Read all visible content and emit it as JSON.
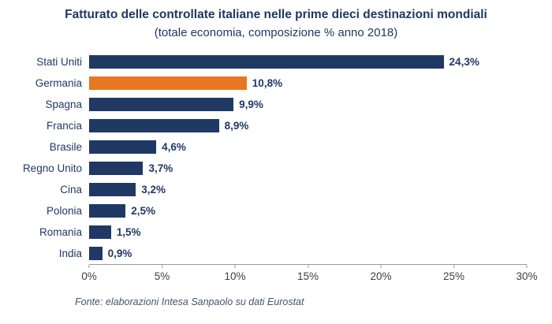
{
  "header": {
    "title": "Fatturato delle controllate italiane nelle prime dieci destinazioni mondiali",
    "subtitle": "(totale economia, composizione % anno 2018)"
  },
  "footer": {
    "source": "Fonte: elaborazioni Intesa Sanpaolo su dati Eurostat"
  },
  "colors": {
    "primary_bar": "#1F3864",
    "highlight_bar": "#E87722",
    "text": "#1F3864",
    "axis": "#9a9a9a"
  },
  "chart_data": {
    "type": "bar",
    "orientation": "horizontal",
    "title": "Fatturato delle controllate italiane nelle prime dieci destinazioni mondiali",
    "subtitle": "(totale economia, composizione % anno 2018)",
    "categories": [
      "Stati Uniti",
      "Germania",
      "Spagna",
      "Francia",
      "Brasile",
      "Regno Unito",
      "Cina",
      "Polonia",
      "Romania",
      "India"
    ],
    "values": [
      24.3,
      10.8,
      9.9,
      8.9,
      4.6,
      3.7,
      3.2,
      2.5,
      1.5,
      0.9
    ],
    "value_labels": [
      "24,3%",
      "10,8%",
      "9,9%",
      "8,9%",
      "4,6%",
      "3,7%",
      "3,2%",
      "2,5%",
      "1,5%",
      "0,9%"
    ],
    "highlight_category": "Germania",
    "xlim": [
      0,
      30
    ],
    "x_ticks": [
      "0%",
      "5%",
      "10%",
      "15%",
      "20%",
      "25%",
      "30%"
    ],
    "xlabel": "",
    "ylabel": "",
    "grid": false,
    "legend": "none",
    "source": "Fonte: elaborazioni Intesa Sanpaolo su dati Eurostat"
  }
}
